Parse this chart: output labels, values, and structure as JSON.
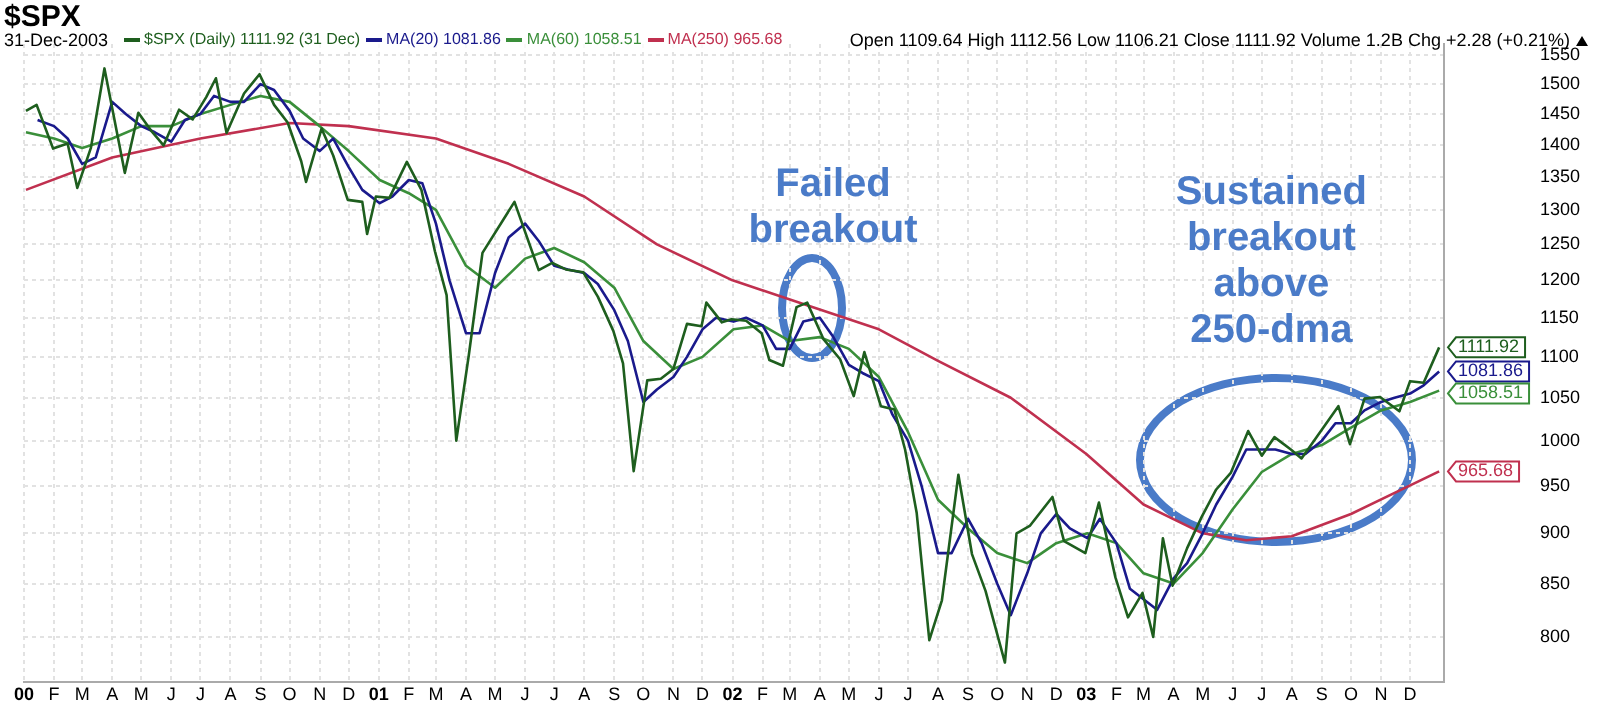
{
  "chart_data": {
    "type": "line",
    "title": "$SPX",
    "subtitle": "31-Dec-2003",
    "annotations": [
      "Open 1109.64 High 1112.56 Low 1106.21 Close 1111.92 Volume 1.2B Chg +2.28 (+0.21%)",
      {
        "text": "Failed breakout",
        "x": "2002-03-25",
        "y": 1163
      },
      {
        "text": "Sustained breakout above 250-dma",
        "x": "2003-07-15",
        "y": 978
      }
    ],
    "log": "y",
    "grid": true,
    "legend": "top left",
    "marker": "none",
    "line_style": "solid",
    "xlim": [
      "2000-01-01",
      "2004-01-05"
    ],
    "xticks": [
      {
        "value": "2000-01-01",
        "label": "00"
      },
      {
        "value": "2000-02-01",
        "label": "F"
      },
      {
        "value": "2000-03-01",
        "label": "M"
      },
      {
        "value": "2000-04-01",
        "label": "A"
      },
      {
        "value": "2000-05-01",
        "label": "M"
      },
      {
        "value": "2000-06-01",
        "label": "J"
      },
      {
        "value": "2000-07-01",
        "label": "J"
      },
      {
        "value": "2000-08-01",
        "label": "A"
      },
      {
        "value": "2000-09-01",
        "label": "S"
      },
      {
        "value": "2000-10-01",
        "label": "O"
      },
      {
        "value": "2000-11-01",
        "label": "N"
      },
      {
        "value": "2000-12-01",
        "label": "D"
      },
      {
        "value": "2001-01-01",
        "label": "01"
      },
      {
        "value": "2001-02-01",
        "label": "F"
      },
      {
        "value": "2001-03-01",
        "label": "M"
      },
      {
        "value": "2001-04-01",
        "label": "A"
      },
      {
        "value": "2001-05-01",
        "label": "M"
      },
      {
        "value": "2001-06-01",
        "label": "J"
      },
      {
        "value": "2001-07-01",
        "label": "J"
      },
      {
        "value": "2001-08-01",
        "label": "A"
      },
      {
        "value": "2001-09-01",
        "label": "S"
      },
      {
        "value": "2001-10-01",
        "label": "O"
      },
      {
        "value": "2001-11-01",
        "label": "N"
      },
      {
        "value": "2001-12-01",
        "label": "D"
      },
      {
        "value": "2002-01-01",
        "label": "02"
      },
      {
        "value": "2002-02-01",
        "label": "F"
      },
      {
        "value": "2002-03-01",
        "label": "M"
      },
      {
        "value": "2002-04-01",
        "label": "A"
      },
      {
        "value": "2002-05-01",
        "label": "M"
      },
      {
        "value": "2002-06-01",
        "label": "J"
      },
      {
        "value": "2002-07-01",
        "label": "J"
      },
      {
        "value": "2002-08-01",
        "label": "A"
      },
      {
        "value": "2002-09-01",
        "label": "S"
      },
      {
        "value": "2002-10-01",
        "label": "O"
      },
      {
        "value": "2002-11-01",
        "label": "N"
      },
      {
        "value": "2002-12-01",
        "label": "D"
      },
      {
        "value": "2003-01-01",
        "label": "03"
      },
      {
        "value": "2003-02-01",
        "label": "F"
      },
      {
        "value": "2003-03-01",
        "label": "M"
      },
      {
        "value": "2003-04-01",
        "label": "A"
      },
      {
        "value": "2003-05-01",
        "label": "M"
      },
      {
        "value": "2003-06-01",
        "label": "J"
      },
      {
        "value": "2003-07-01",
        "label": "J"
      },
      {
        "value": "2003-08-01",
        "label": "A"
      },
      {
        "value": "2003-09-01",
        "label": "S"
      },
      {
        "value": "2003-10-01",
        "label": "O"
      },
      {
        "value": "2003-11-01",
        "label": "N"
      },
      {
        "value": "2003-12-01",
        "label": "D"
      }
    ],
    "ylim": [
      760,
      1570
    ],
    "yticks": [
      800,
      850,
      900,
      950,
      1000,
      1050,
      1100,
      1150,
      1200,
      1250,
      1300,
      1350,
      1400,
      1450,
      1500,
      1550
    ],
    "series": [
      {
        "name": "$SPX (Daily) 1111.92 (31 Dec)",
        "color": "#1e5e1e",
        "x": [
          "2000-01-03",
          "2000-01-14",
          "2000-01-31",
          "2000-02-15",
          "2000-02-25",
          "2000-03-10",
          "2000-03-24",
          "2000-04-14",
          "2000-04-28",
          "2000-05-12",
          "2000-05-24",
          "2000-06-09",
          "2000-06-23",
          "2000-07-07",
          "2000-07-17",
          "2000-07-28",
          "2000-08-15",
          "2000-08-31",
          "2000-09-15",
          "2000-09-29",
          "2000-10-13",
          "2000-10-18",
          "2000-11-03",
          "2000-11-15",
          "2000-11-30",
          "2000-12-15",
          "2000-12-20",
          "2000-12-29",
          "2001-01-12",
          "2001-01-30",
          "2001-02-14",
          "2001-02-28",
          "2001-03-12",
          "2001-03-22",
          "2001-04-04",
          "2001-04-18",
          "2001-05-21",
          "2001-06-15",
          "2001-06-29",
          "2001-07-13",
          "2001-07-31",
          "2001-08-15",
          "2001-08-31",
          "2001-09-10",
          "2001-09-21",
          "2001-10-05",
          "2001-10-19",
          "2001-11-01",
          "2001-11-15",
          "2001-11-30",
          "2001-12-05",
          "2001-12-21",
          "2001-12-31",
          "2002-01-15",
          "2002-01-31",
          "2002-02-08",
          "2002-02-22",
          "2002-03-08",
          "2002-03-19",
          "2002-04-05",
          "2002-04-22",
          "2002-05-06",
          "2002-05-17",
          "2002-06-03",
          "2002-06-17",
          "2002-06-28",
          "2002-07-10",
          "2002-07-23",
          "2002-08-05",
          "2002-08-22",
          "2002-09-05",
          "2002-09-19",
          "2002-10-09",
          "2002-10-21",
          "2002-11-04",
          "2002-11-27",
          "2002-12-09",
          "2002-12-31",
          "2003-01-14",
          "2003-01-31",
          "2003-02-13",
          "2003-02-28",
          "2003-03-11",
          "2003-03-21",
          "2003-03-31",
          "2003-04-15",
          "2003-04-30",
          "2003-05-15",
          "2003-05-30",
          "2003-06-17",
          "2003-07-01",
          "2003-07-14",
          "2003-07-31",
          "2003-08-11",
          "2003-08-29",
          "2003-09-18",
          "2003-09-30",
          "2003-10-15",
          "2003-10-31",
          "2003-11-20",
          "2003-12-01",
          "2003-12-15",
          "2003-12-31"
        ],
        "values": [
          1455,
          1465,
          1394,
          1402,
          1333,
          1395,
          1527,
          1356,
          1452,
          1421,
          1399,
          1457,
          1441,
          1478,
          1510,
          1419,
          1484,
          1517,
          1465,
          1436,
          1374,
          1342,
          1426,
          1383,
          1315,
          1312,
          1265,
          1320,
          1318,
          1373,
          1330,
          1240,
          1180,
          1000,
          1103,
          1238,
          1312,
          1214,
          1224,
          1215,
          1211,
          1178,
          1133,
          1092,
          966,
          1071,
          1073,
          1085,
          1142,
          1139,
          1170,
          1144,
          1148,
          1146,
          1130,
          1096,
          1089,
          1164,
          1170,
          1122,
          1097,
          1052,
          1106,
          1040,
          1036,
          990,
          921,
          797,
          834,
          962,
          879,
          843,
          777,
          900,
          908,
          938,
          892,
          880,
          932,
          856,
          818,
          841,
          800,
          895,
          848,
          885,
          917,
          946,
          964,
          1011,
          983,
          1004,
          990,
          980,
          1008,
          1040,
          996,
          1049,
          1051,
          1034,
          1070,
          1068,
          1111.92
        ],
        "value_labels": [
          null,
          null,
          null,
          null,
          null,
          null,
          null,
          null,
          null,
          null,
          null,
          null,
          null,
          null,
          null,
          null,
          null,
          null,
          null,
          null,
          null,
          null,
          null,
          null,
          null,
          null,
          null,
          null,
          null,
          null,
          null,
          null,
          null,
          null,
          null,
          null,
          null,
          null,
          null,
          null,
          null,
          null,
          null,
          null,
          null,
          null,
          null,
          null,
          null,
          null,
          null,
          null,
          null,
          null,
          null,
          null,
          null,
          null,
          null,
          null,
          null,
          null,
          null,
          null,
          null,
          null,
          null,
          null,
          null,
          null,
          null,
          null,
          null,
          null,
          null,
          null,
          null,
          null,
          null,
          null,
          null,
          null,
          null,
          null,
          null,
          null,
          null,
          null,
          null,
          null,
          null,
          null,
          null,
          null,
          null,
          null,
          null,
          null,
          null,
          null,
          null,
          null,
          "1111.92"
        ]
      },
      {
        "name": "MA(20) 1081.86",
        "color": "#1a1a8c",
        "x": [
          "2000-01-15",
          "2000-02-01",
          "2000-02-15",
          "2000-03-01",
          "2000-03-15",
          "2000-04-01",
          "2000-04-15",
          "2000-05-01",
          "2000-05-15",
          "2000-06-01",
          "2000-06-15",
          "2000-07-01",
          "2000-07-15",
          "2000-08-01",
          "2000-08-15",
          "2000-09-01",
          "2000-09-15",
          "2000-10-01",
          "2000-10-15",
          "2000-11-01",
          "2000-11-15",
          "2000-12-01",
          "2000-12-15",
          "2001-01-02",
          "2001-01-15",
          "2001-02-01",
          "2001-02-15",
          "2001-03-01",
          "2001-03-15",
          "2001-04-01",
          "2001-04-15",
          "2001-05-01",
          "2001-05-15",
          "2001-06-01",
          "2001-06-15",
          "2001-07-01",
          "2001-07-15",
          "2001-08-01",
          "2001-08-15",
          "2001-09-01",
          "2001-09-15",
          "2001-10-01",
          "2001-10-15",
          "2001-11-01",
          "2001-11-15",
          "2001-12-01",
          "2001-12-15",
          "2002-01-02",
          "2002-01-15",
          "2002-02-01",
          "2002-02-15",
          "2002-03-01",
          "2002-03-15",
          "2002-04-01",
          "2002-04-15",
          "2002-05-01",
          "2002-05-15",
          "2002-06-01",
          "2002-06-15",
          "2002-07-01",
          "2002-07-15",
          "2002-08-01",
          "2002-08-15",
          "2002-09-01",
          "2002-09-15",
          "2002-10-01",
          "2002-10-15",
          "2002-11-01",
          "2002-11-15",
          "2002-12-01",
          "2002-12-15",
          "2003-01-02",
          "2003-01-15",
          "2003-02-01",
          "2003-02-15",
          "2003-03-01",
          "2003-03-15",
          "2003-04-01",
          "2003-04-15",
          "2003-05-01",
          "2003-05-15",
          "2003-06-01",
          "2003-06-15",
          "2003-07-01",
          "2003-07-15",
          "2003-08-01",
          "2003-08-15",
          "2003-09-01",
          "2003-09-15",
          "2003-10-01",
          "2003-10-15",
          "2003-11-01",
          "2003-11-15",
          "2003-12-01",
          "2003-12-15",
          "2003-12-31"
        ],
        "values": [
          1440,
          1430,
          1410,
          1370,
          1380,
          1470,
          1450,
          1430,
          1420,
          1405,
          1440,
          1450,
          1480,
          1470,
          1470,
          1500,
          1490,
          1455,
          1410,
          1390,
          1410,
          1365,
          1330,
          1310,
          1320,
          1345,
          1340,
          1280,
          1200,
          1130,
          1130,
          1210,
          1260,
          1280,
          1255,
          1220,
          1215,
          1210,
          1195,
          1160,
          1120,
          1045,
          1060,
          1075,
          1100,
          1135,
          1150,
          1145,
          1150,
          1140,
          1110,
          1110,
          1145,
          1150,
          1125,
          1090,
          1080,
          1070,
          1030,
          1000,
          950,
          880,
          880,
          915,
          890,
          850,
          820,
          860,
          900,
          920,
          905,
          895,
          915,
          890,
          845,
          835,
          825,
          855,
          870,
          900,
          930,
          960,
          990,
          990,
          990,
          985,
          985,
          1000,
          1020,
          1020,
          1035,
          1045,
          1050,
          1055,
          1065,
          1081.86
        ],
        "value_labels": [
          null,
          null,
          null,
          null,
          null,
          null,
          null,
          null,
          null,
          null,
          null,
          null,
          null,
          null,
          null,
          null,
          null,
          null,
          null,
          null,
          null,
          null,
          null,
          null,
          null,
          null,
          null,
          null,
          null,
          null,
          null,
          null,
          null,
          null,
          null,
          null,
          null,
          null,
          null,
          null,
          null,
          null,
          null,
          null,
          null,
          null,
          null,
          null,
          null,
          null,
          null,
          null,
          null,
          null,
          null,
          null,
          null,
          null,
          null,
          null,
          null,
          null,
          null,
          null,
          null,
          null,
          null,
          null,
          null,
          null,
          null,
          null,
          null,
          null,
          null,
          null,
          null,
          null,
          null,
          null,
          null,
          null,
          null,
          null,
          null,
          null,
          null,
          null,
          null,
          null,
          null,
          null,
          null,
          null,
          null,
          "1081.86"
        ]
      },
      {
        "name": "MA(60) 1058.51",
        "color": "#3a8f3a",
        "x": [
          "2000-01-03",
          "2000-02-01",
          "2000-03-01",
          "2000-04-01",
          "2000-05-01",
          "2000-06-01",
          "2000-07-01",
          "2000-08-01",
          "2000-09-01",
          "2000-10-01",
          "2000-11-01",
          "2000-12-01",
          "2001-01-02",
          "2001-02-01",
          "2001-03-01",
          "2001-04-01",
          "2001-05-01",
          "2001-06-01",
          "2001-07-01",
          "2001-08-01",
          "2001-09-01",
          "2001-10-01",
          "2001-11-01",
          "2001-12-01",
          "2002-01-02",
          "2002-02-01",
          "2002-03-01",
          "2002-04-01",
          "2002-05-01",
          "2002-06-01",
          "2002-07-01",
          "2002-08-01",
          "2002-09-01",
          "2002-10-01",
          "2002-11-01",
          "2002-12-01",
          "2003-01-02",
          "2003-02-01",
          "2003-03-01",
          "2003-04-01",
          "2003-05-01",
          "2003-06-01",
          "2003-07-01",
          "2003-08-01",
          "2003-09-01",
          "2003-10-01",
          "2003-11-01",
          "2003-12-01",
          "2003-12-31"
        ],
        "values": [
          1420,
          1410,
          1395,
          1410,
          1430,
          1430,
          1450,
          1465,
          1480,
          1470,
          1430,
          1390,
          1345,
          1325,
          1300,
          1220,
          1190,
          1230,
          1245,
          1225,
          1190,
          1120,
          1085,
          1100,
          1135,
          1140,
          1120,
          1125,
          1110,
          1075,
          1010,
          935,
          905,
          880,
          870,
          890,
          900,
          890,
          860,
          850,
          880,
          925,
          965,
          985,
          995,
          1015,
          1035,
          1045,
          1058.51
        ],
        "value_labels": [
          null,
          null,
          null,
          null,
          null,
          null,
          null,
          null,
          null,
          null,
          null,
          null,
          null,
          null,
          null,
          null,
          null,
          null,
          null,
          null,
          null,
          null,
          null,
          null,
          null,
          null,
          null,
          null,
          null,
          null,
          null,
          null,
          null,
          null,
          null,
          null,
          null,
          null,
          null,
          null,
          null,
          null,
          null,
          null,
          null,
          null,
          null,
          null,
          "1058.51"
        ]
      },
      {
        "name": "MA(250) 965.68",
        "color": "#c0304f",
        "x": [
          "2000-01-03",
          "2000-04-01",
          "2000-07-01",
          "2000-10-01",
          "2000-12-01",
          "2001-03-01",
          "2001-05-15",
          "2001-08-01",
          "2001-10-15",
          "2002-01-01",
          "2002-03-15",
          "2002-06-01",
          "2002-08-01",
          "2002-10-15",
          "2003-01-01",
          "2003-03-01",
          "2003-05-01",
          "2003-06-15",
          "2003-08-01",
          "2003-10-01",
          "2003-12-31"
        ],
        "values": [
          1330,
          1380,
          1410,
          1435,
          1430,
          1410,
          1370,
          1320,
          1250,
          1200,
          1168,
          1135,
          1095,
          1050,
          985,
          930,
          900,
          893,
          897,
          920,
          965.68
        ],
        "value_labels": [
          null,
          null,
          null,
          null,
          null,
          null,
          null,
          null,
          null,
          null,
          null,
          null,
          null,
          null,
          null,
          null,
          null,
          null,
          null,
          null,
          "965.68"
        ]
      }
    ]
  }
}
